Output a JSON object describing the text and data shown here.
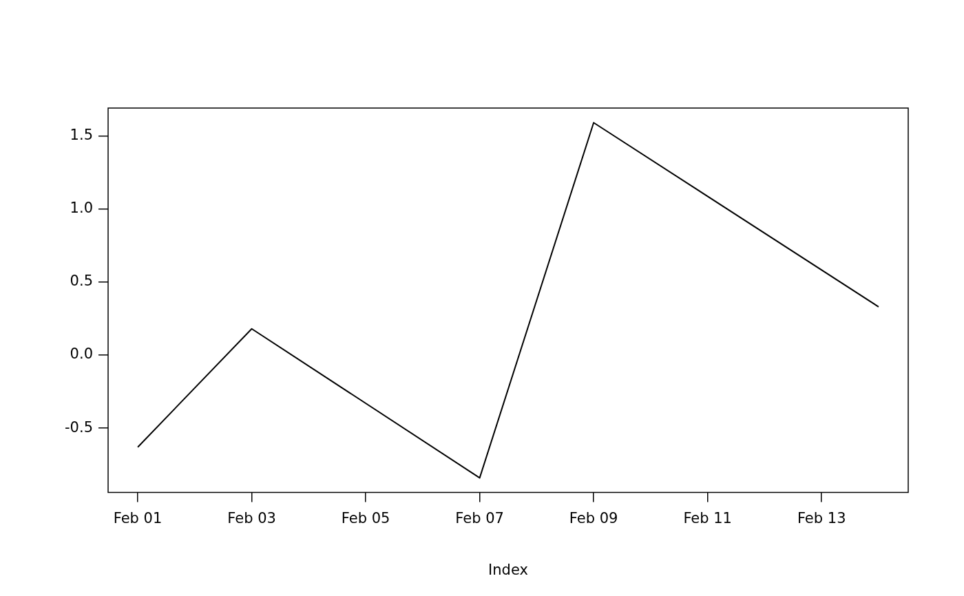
{
  "chart_data": {
    "type": "line",
    "xlabel": "Index",
    "x": [
      "--02-01",
      "--02-03",
      "--02-07",
      "--02-09",
      "--02-14"
    ],
    "series": [
      {
        "color": "#000000",
        "values": [
          -0.63,
          0.18,
          -0.84,
          1.59,
          0.33
        ]
      }
    ],
    "xlim": [
      "--01-31T11:31",
      "--02-14T12:29"
    ],
    "xticks": [
      {
        "value": "--02-01",
        "label": "Feb 01"
      },
      {
        "value": "--02-03",
        "label": "Feb 03"
      },
      {
        "value": "--02-05",
        "label": "Feb 05"
      },
      {
        "value": "--02-07",
        "label": "Feb 07"
      },
      {
        "value": "--02-09",
        "label": "Feb 09"
      },
      {
        "value": "--02-11",
        "label": "Feb 11"
      },
      {
        "value": "--02-13",
        "label": "Feb 13"
      }
    ],
    "ylim": [
      -0.94,
      1.69
    ],
    "yticks": [
      {
        "value": -0.5,
        "label": "-0.5"
      },
      {
        "value": 0,
        "label": "0.0"
      },
      {
        "value": 0.5,
        "label": "0.5"
      },
      {
        "value": 1,
        "label": "1.0"
      },
      {
        "value": 1.5,
        "label": "1.5"
      }
    ],
    "grid": false,
    "legend": false,
    "marker": "none",
    "line_style": "solid"
  }
}
